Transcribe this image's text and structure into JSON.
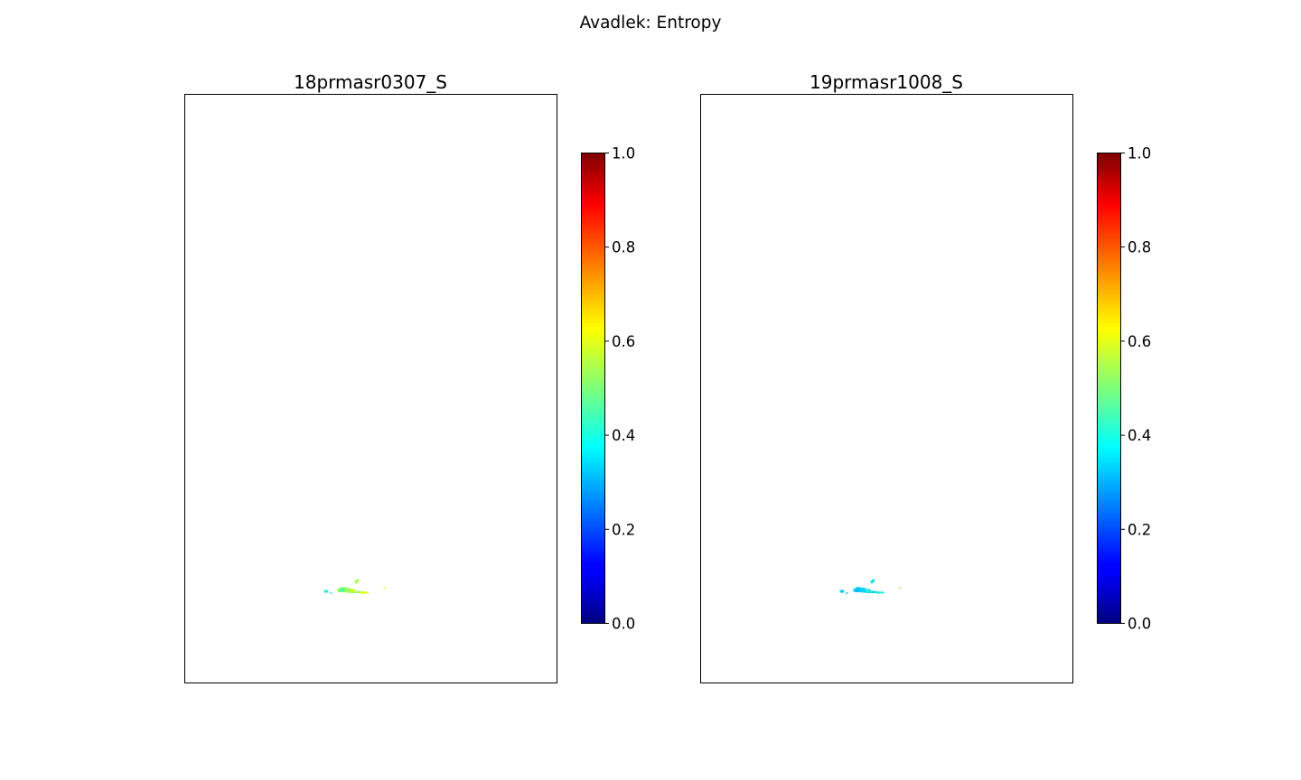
{
  "figure": {
    "title": "Avadlek: Entropy"
  },
  "chart_data": [
    {
      "type": "heatmap",
      "title": "18prmasr0307_S",
      "xlabel": "",
      "ylabel": "",
      "axes_ticks_visible": false,
      "colormap": "jet",
      "colorbar": {
        "range": [
          0.0,
          1.0
        ],
        "ticks": [
          "0.0",
          "0.2",
          "0.4",
          "0.6",
          "0.8",
          "1.0"
        ],
        "placement": "right"
      },
      "image_note": "mostly empty (no data); small patch near lower center",
      "value_range_visible": [
        0.35,
        0.6
      ]
    },
    {
      "type": "heatmap",
      "title": "19prmasr1008_S",
      "xlabel": "",
      "ylabel": "",
      "axes_ticks_visible": false,
      "colormap": "jet",
      "colorbar": {
        "range": [
          0.0,
          1.0
        ],
        "ticks": [
          "0.0",
          "0.2",
          "0.4",
          "0.6",
          "0.8",
          "1.0"
        ],
        "placement": "right"
      },
      "image_note": "mostly empty (no data); small patch near lower center",
      "value_range_visible": [
        0.3,
        0.45
      ]
    }
  ]
}
